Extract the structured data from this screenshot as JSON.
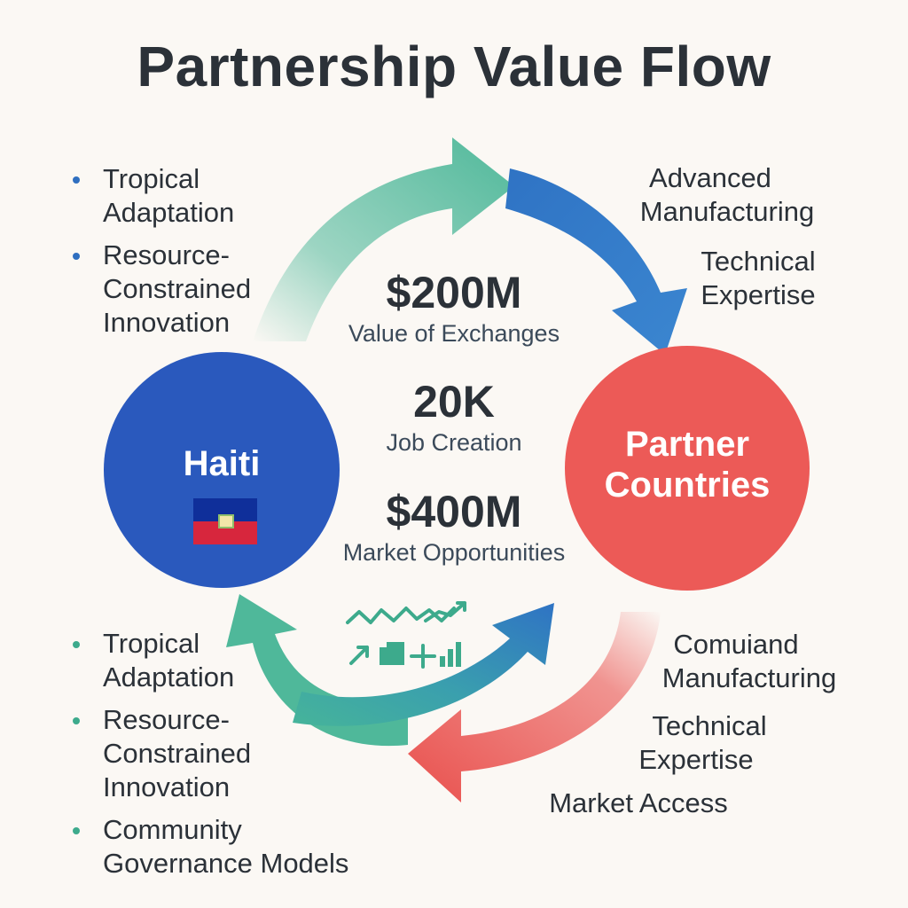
{
  "title": "Partnership Value Flow",
  "colors": {
    "background": "#fbf8f4",
    "haiti_circle": "#2a59bd",
    "partner_circle": "#ec5a57",
    "green_arrow": "#4fb89a",
    "blue_arrow": "#2f73c4",
    "red_arrow": "#e9504d"
  },
  "nodes": {
    "haiti": {
      "label": "Haiti",
      "icon": "haiti-flag-icon"
    },
    "partner": {
      "label_line1": "Partner",
      "label_line2": "Countries"
    }
  },
  "stats": [
    {
      "value": "$200M",
      "label": "Value of Exchanges"
    },
    {
      "value": "20K",
      "label": "Job Creation"
    },
    {
      "value": "$400M",
      "label": "Market Opportunities"
    }
  ],
  "top_left_list": [
    {
      "line1": "Tropical",
      "line2": "Adaptation"
    },
    {
      "line1": "Resource-",
      "line2": "Constrained",
      "line3": "Innovation"
    }
  ],
  "top_right_text": [
    {
      "line1": "Advanced",
      "line2": "Manufacturing"
    },
    {
      "line1": "Technical",
      "line2": "Expertise"
    }
  ],
  "bottom_left_list": [
    {
      "line1": "Tropical",
      "line2": "Adaptation"
    },
    {
      "line1": "Resource-",
      "line2": "Constrained",
      "line3": "Innovation"
    },
    {
      "line1": "Community",
      "line2": "Governance Models"
    }
  ],
  "bottom_right_text": [
    {
      "line1": "Comuiand",
      "line2": "Manufacturing"
    },
    {
      "line1": "Technical",
      "line2": "Expertise"
    },
    {
      "line1": "Market Access"
    }
  ],
  "center_icons": [
    "trend-lines-icon",
    "growth-chart-icon",
    "arrow-up-right-icon",
    "steps-icon",
    "bar-chart-icon"
  ]
}
